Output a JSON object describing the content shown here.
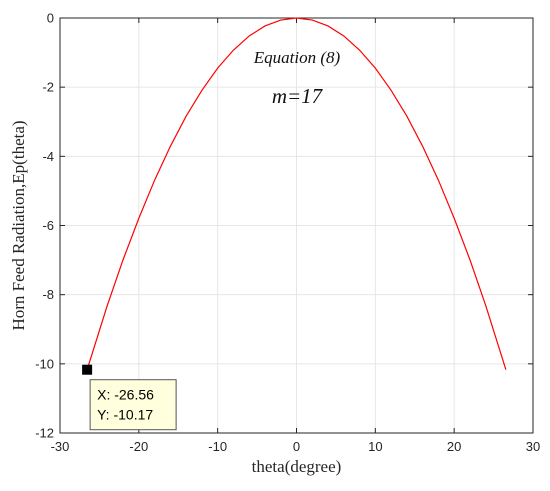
{
  "chart_data": {
    "type": "line",
    "xlabel": "theta(degree)",
    "ylabel": "Horn Feed Radiation,Ep(theta)",
    "xlim": [
      -30,
      30
    ],
    "ylim": [
      -12,
      0
    ],
    "xticks": [
      -30,
      -20,
      -10,
      0,
      10,
      20,
      30
    ],
    "yticks": [
      0,
      -2,
      -4,
      -6,
      -8,
      -10,
      -12
    ],
    "grid": true,
    "series": [
      {
        "color": "#ff0000",
        "x": [
          -26.56,
          -24,
          -22,
          -20,
          -18,
          -16,
          -14,
          -12,
          -10,
          -8,
          -6,
          -4,
          -2,
          0,
          2,
          4,
          6,
          8,
          10,
          12,
          14,
          16,
          18,
          20,
          22,
          24,
          26.56
        ],
        "y": [
          -10.17,
          -8.31,
          -6.99,
          -5.79,
          -4.69,
          -3.71,
          -2.84,
          -2.09,
          -1.45,
          -0.93,
          -0.52,
          -0.23,
          -0.06,
          0,
          -0.06,
          -0.23,
          -0.52,
          -0.93,
          -1.45,
          -2.09,
          -2.84,
          -3.71,
          -4.69,
          -5.79,
          -6.99,
          -8.31,
          -10.17
        ]
      }
    ],
    "annotations": [
      "Equation (8)",
      "m=17"
    ],
    "datatip": {
      "x": -26.56,
      "y": -10.17,
      "x_text": "X: -26.56",
      "y_text": "Y: -10.17"
    }
  }
}
